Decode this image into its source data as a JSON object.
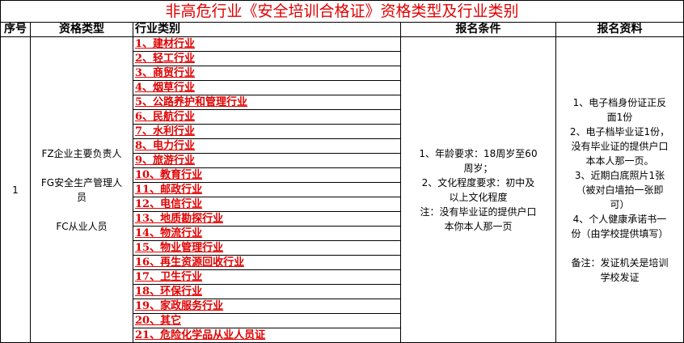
{
  "title": "非高危行业《安全培训合格证》资格类型及行业类别",
  "headers": [
    "序号",
    "资格类型",
    "行业类别",
    "报名条件",
    "报名资料"
  ],
  "row": {
    "seq": "1",
    "qualification_types": [
      "FZ企业主要负责人",
      "",
      "FG安全生产管理人",
      "员",
      "",
      "FC从业人员"
    ],
    "industries": [
      "1、建材行业",
      "2、轻工行业",
      "3、商贸行业",
      "4、烟草行业",
      "5、公路养护和管理行业",
      "6、民航行业",
      "7、水利行业",
      "8、电力行业",
      "9、旅游行业",
      "10、教育行业",
      "11、邮政行业",
      "12、电信行业",
      "13、地质勘探行业",
      "14、物流行业",
      "15、物业管理行业",
      "16、再生资源回收行业",
      "17、卫生行业",
      "18、环保行业",
      "19、家政服务行业",
      "20、其它",
      "21、危险化学品从业人员证"
    ],
    "conditions": [
      "1、年龄要求：18周岁至60",
      "周岁；",
      "2、文化程度要求：初中及",
      "以上文化程度",
      "注：没有毕业证的提供户口",
      "本你本人那一页"
    ],
    "materials": [
      "1、电子档身份证正反",
      "面1份",
      "2、电子档毕业证1份，",
      "没有毕业证的提供户口",
      "本本人那一页。",
      "3、近期白底照片1张",
      "（被对白墙拍一张即",
      "可）",
      "4、个人健康承诺书一",
      "份（由学校提供填写）",
      "",
      "备注：发证机关是培训",
      "学校发证"
    ]
  }
}
